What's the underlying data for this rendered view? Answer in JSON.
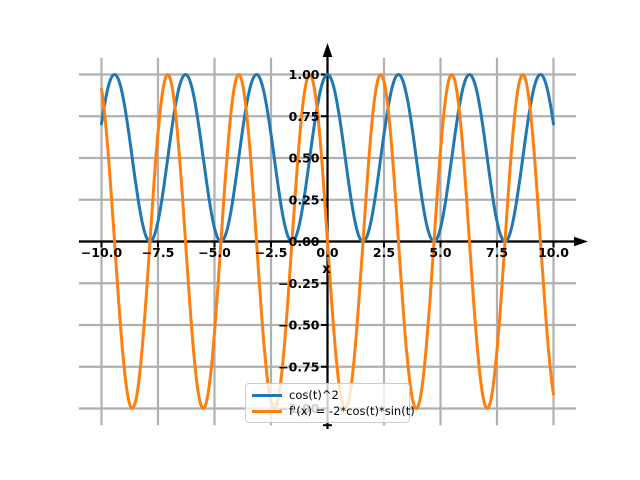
{
  "figure": {
    "background": "#ffffff",
    "kind": "matplotlib-style function plot"
  },
  "chart_data": {
    "type": "line",
    "title": "",
    "xlabel": "x",
    "ylabel": "",
    "x_range": [
      -10,
      10
    ],
    "xlim": [
      -11,
      11
    ],
    "ylim": [
      -1.1,
      1.1
    ],
    "grid": true,
    "grid_color": "#b0b0b0",
    "axis_color": "#000000",
    "tick_label_color": "#000000",
    "xticks": {
      "values": [
        -10,
        -7.5,
        -5,
        -2.5,
        0,
        2.5,
        5,
        7.5,
        10
      ],
      "labels": [
        "−10.0",
        "−7.5",
        "−5.0",
        "−2.5",
        "0.0",
        "2.5",
        "5.0",
        "7.5",
        "10.0"
      ]
    },
    "yticks": {
      "values": [
        1,
        0.75,
        0.5,
        0.25,
        0,
        -0.25,
        -0.5,
        -0.75,
        -1
      ],
      "labels": [
        "1.00",
        "0.75",
        "0.50",
        "0.25",
        "0.00",
        "−0.25",
        "−0.50",
        "−0.75",
        "−1.00"
      ]
    },
    "series": [
      {
        "name": "cos(t)^2",
        "expr": "cos(t)^2",
        "fn": "cos_squared",
        "color": "#1f77b4",
        "linewidth": 3,
        "domain": [
          -10,
          10
        ],
        "sample_step": 0.04,
        "period": 3.14159,
        "value_range": [
          0,
          1
        ],
        "value_at_0": 1
      },
      {
        "name": "f'(x) = -2*cos(t)*sin(t)",
        "expr": "-2*cos(t)*sin(t)",
        "fn": "neg_two_cos_sin",
        "color": "#ff7f0e",
        "linewidth": 3,
        "domain": [
          -10,
          10
        ],
        "sample_step": 0.04,
        "period": 3.14159,
        "value_range": [
          -1,
          1
        ],
        "value_at_0": 0
      }
    ],
    "legend": {
      "position": "lower center",
      "entries": [
        {
          "label": "cos(t)^2",
          "color": "#1f77b4"
        },
        {
          "label": "f'(x) = -2*cos(t)*sin(t)",
          "color": "#ff7f0e"
        }
      ]
    }
  }
}
